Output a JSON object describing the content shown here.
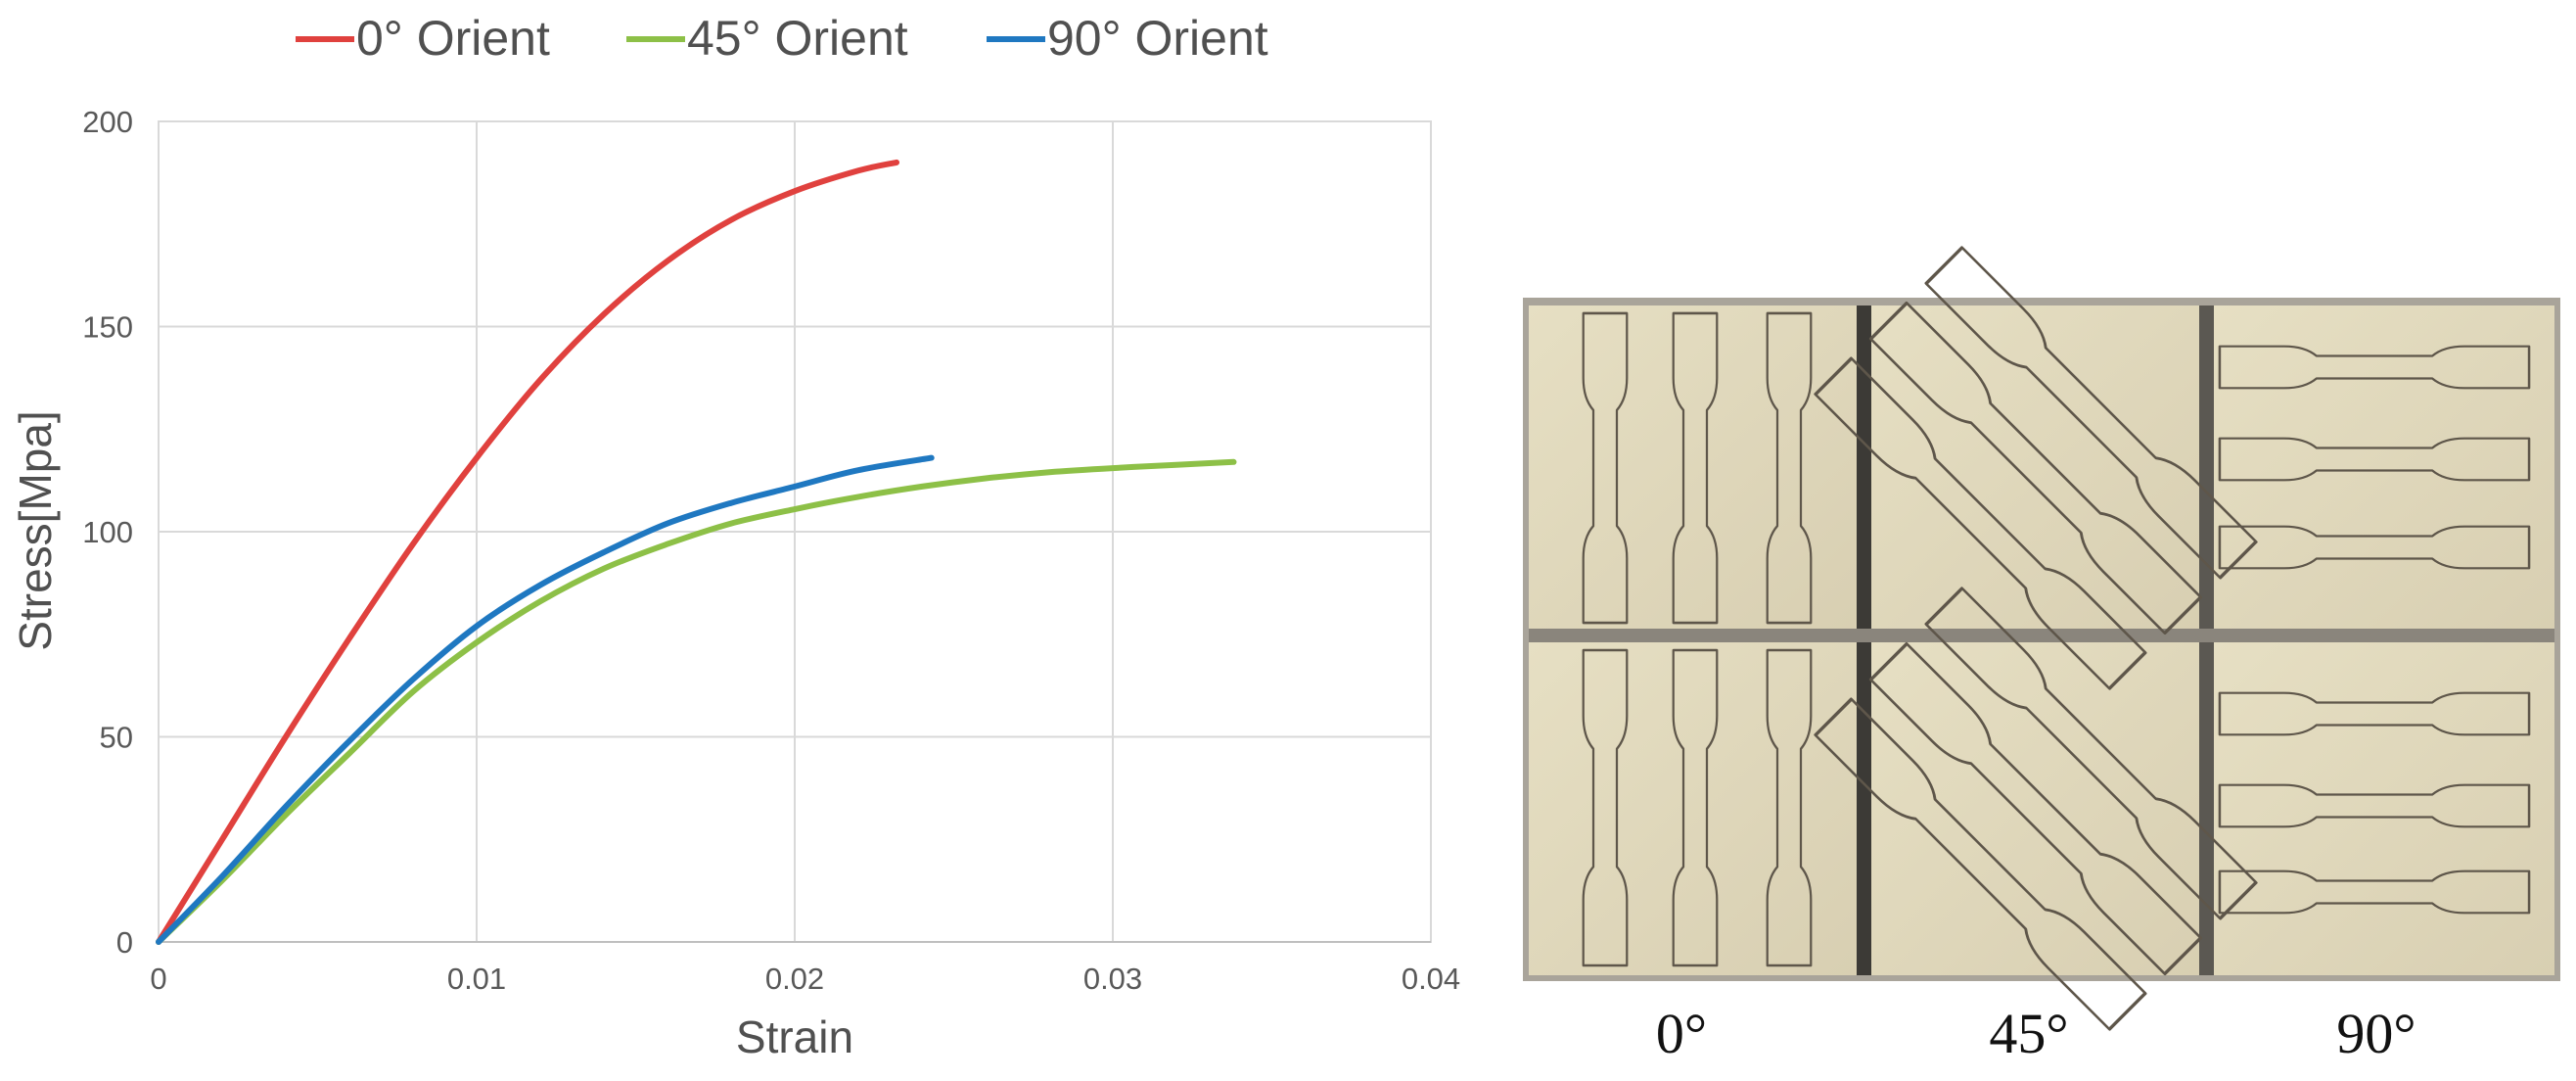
{
  "chart_data": {
    "type": "line",
    "title": "",
    "xlabel": "Strain",
    "ylabel": "Stress[Mpa]",
    "xlim": [
      0,
      0.04
    ],
    "ylim": [
      0,
      200
    ],
    "xticks": [
      0,
      0.01,
      0.02,
      0.03,
      0.04
    ],
    "xtick_labels": [
      "0",
      "0.01",
      "0.02",
      "0.03",
      "0.04"
    ],
    "yticks": [
      0,
      50,
      100,
      150,
      200
    ],
    "ytick_labels": [
      "0",
      "50",
      "100",
      "150",
      "200"
    ],
    "grid": true,
    "legend_position": "top",
    "series": [
      {
        "name": "0° Orient",
        "color": "#e0413e",
        "x": [
          0,
          0.002,
          0.004,
          0.006,
          0.008,
          0.01,
          0.012,
          0.014,
          0.016,
          0.018,
          0.02,
          0.022,
          0.0232
        ],
        "y": [
          0,
          25,
          50,
          74,
          97,
          118,
          137,
          153,
          166,
          176,
          183,
          188,
          190
        ]
      },
      {
        "name": "45° Orient",
        "color": "#8dc047",
        "x": [
          0,
          0.002,
          0.004,
          0.006,
          0.008,
          0.01,
          0.012,
          0.014,
          0.016,
          0.018,
          0.02,
          0.022,
          0.024,
          0.026,
          0.028,
          0.03,
          0.032,
          0.0338
        ],
        "y": [
          0,
          15,
          31,
          46,
          61,
          73,
          83,
          91,
          97,
          102,
          105.5,
          108.5,
          111,
          113,
          114.5,
          115.5,
          116.3,
          117
        ]
      },
      {
        "name": "90° Orient",
        "color": "#1f78c1",
        "x": [
          0,
          0.002,
          0.004,
          0.006,
          0.008,
          0.01,
          0.012,
          0.014,
          0.016,
          0.018,
          0.02,
          0.022,
          0.0243
        ],
        "y": [
          0,
          16,
          33,
          49,
          64,
          77,
          87,
          95,
          102,
          107,
          111,
          115,
          118
        ]
      }
    ]
  },
  "photo": {
    "labels": [
      "0°",
      "45°",
      "90°"
    ]
  }
}
